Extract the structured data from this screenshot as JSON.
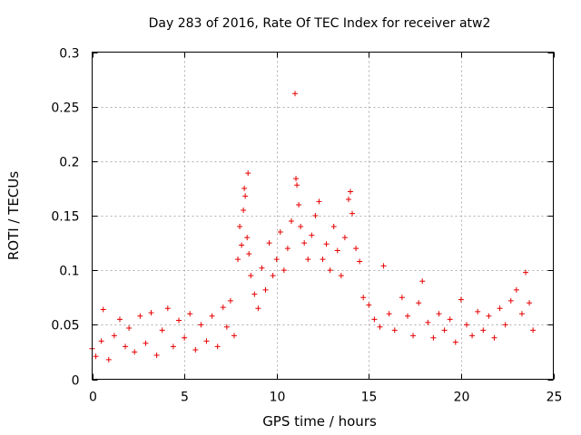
{
  "chart_data": {
    "type": "scatter",
    "title": "Day 283 of 2016, Rate Of TEC Index for receiver atw2",
    "xlabel": "GPS time / hours",
    "ylabel": "ROTI / TECUs",
    "xlim": [
      0,
      25
    ],
    "ylim": [
      0,
      0.3
    ],
    "xticks": [
      0,
      5,
      10,
      15,
      20,
      25
    ],
    "xtick_labels": [
      "0",
      "5",
      "10",
      "15",
      "20",
      "25"
    ],
    "yticks": [
      0,
      0.05,
      0.1,
      0.15,
      0.2,
      0.25,
      0.3
    ],
    "ytick_labels": [
      "0",
      "0.05",
      "0.1",
      "0.15",
      "0.2",
      "0.25",
      "0.3"
    ],
    "grid": true,
    "marker": "plus",
    "color": "#e60000",
    "series": [
      {
        "name": "ROTI",
        "points": [
          [
            0.0,
            0.028
          ],
          [
            0.2,
            0.021
          ],
          [
            0.5,
            0.035
          ],
          [
            0.6,
            0.064
          ],
          [
            0.9,
            0.018
          ],
          [
            1.2,
            0.04
          ],
          [
            1.5,
            0.055
          ],
          [
            1.8,
            0.03
          ],
          [
            2.0,
            0.047
          ],
          [
            2.3,
            0.025
          ],
          [
            2.6,
            0.058
          ],
          [
            2.9,
            0.033
          ],
          [
            3.2,
            0.061
          ],
          [
            3.5,
            0.022
          ],
          [
            3.8,
            0.045
          ],
          [
            4.1,
            0.065
          ],
          [
            4.4,
            0.03
          ],
          [
            4.7,
            0.054
          ],
          [
            5.0,
            0.038
          ],
          [
            5.3,
            0.06
          ],
          [
            5.6,
            0.027
          ],
          [
            5.9,
            0.05
          ],
          [
            6.2,
            0.035
          ],
          [
            6.5,
            0.058
          ],
          [
            6.8,
            0.03
          ],
          [
            7.1,
            0.066
          ],
          [
            7.3,
            0.048
          ],
          [
            7.5,
            0.072
          ],
          [
            7.7,
            0.04
          ],
          [
            7.9,
            0.11
          ],
          [
            8.0,
            0.14
          ],
          [
            8.1,
            0.123
          ],
          [
            8.2,
            0.155
          ],
          [
            8.25,
            0.175
          ],
          [
            8.3,
            0.168
          ],
          [
            8.4,
            0.13
          ],
          [
            8.45,
            0.189
          ],
          [
            8.5,
            0.115
          ],
          [
            8.6,
            0.095
          ],
          [
            8.8,
            0.078
          ],
          [
            9.0,
            0.065
          ],
          [
            9.2,
            0.102
          ],
          [
            9.4,
            0.082
          ],
          [
            9.6,
            0.125
          ],
          [
            9.8,
            0.095
          ],
          [
            10.0,
            0.11
          ],
          [
            10.2,
            0.135
          ],
          [
            10.4,
            0.1
          ],
          [
            10.6,
            0.12
          ],
          [
            10.8,
            0.145
          ],
          [
            11.0,
            0.262
          ],
          [
            11.05,
            0.184
          ],
          [
            11.1,
            0.178
          ],
          [
            11.2,
            0.16
          ],
          [
            11.3,
            0.14
          ],
          [
            11.5,
            0.125
          ],
          [
            11.7,
            0.11
          ],
          [
            11.9,
            0.132
          ],
          [
            12.1,
            0.15
          ],
          [
            12.3,
            0.163
          ],
          [
            12.5,
            0.11
          ],
          [
            12.7,
            0.124
          ],
          [
            12.9,
            0.1
          ],
          [
            13.1,
            0.14
          ],
          [
            13.3,
            0.118
          ],
          [
            13.5,
            0.095
          ],
          [
            13.7,
            0.13
          ],
          [
            13.9,
            0.165
          ],
          [
            14.0,
            0.172
          ],
          [
            14.1,
            0.152
          ],
          [
            14.3,
            0.12
          ],
          [
            14.5,
            0.108
          ],
          [
            14.7,
            0.075
          ],
          [
            15.0,
            0.068
          ],
          [
            15.3,
            0.055
          ],
          [
            15.6,
            0.048
          ],
          [
            15.8,
            0.104
          ],
          [
            16.1,
            0.06
          ],
          [
            16.4,
            0.045
          ],
          [
            16.8,
            0.075
          ],
          [
            17.1,
            0.058
          ],
          [
            17.4,
            0.04
          ],
          [
            17.7,
            0.07
          ],
          [
            17.9,
            0.09
          ],
          [
            18.2,
            0.052
          ],
          [
            18.5,
            0.038
          ],
          [
            18.8,
            0.06
          ],
          [
            19.1,
            0.045
          ],
          [
            19.4,
            0.055
          ],
          [
            19.7,
            0.034
          ],
          [
            20.0,
            0.073
          ],
          [
            20.3,
            0.05
          ],
          [
            20.6,
            0.04
          ],
          [
            20.9,
            0.062
          ],
          [
            21.2,
            0.045
          ],
          [
            21.5,
            0.058
          ],
          [
            21.8,
            0.038
          ],
          [
            22.1,
            0.065
          ],
          [
            22.4,
            0.05
          ],
          [
            22.7,
            0.072
          ],
          [
            23.0,
            0.082
          ],
          [
            23.3,
            0.06
          ],
          [
            23.5,
            0.098
          ],
          [
            23.7,
            0.07
          ],
          [
            23.9,
            0.045
          ]
        ]
      }
    ],
    "note": "Dense band of ROTI values between ~0.01 and ~0.05 TECU throughout the day (0-24 h), with enhanced scatter up to ~0.19 between 8-15 h and an outlier of ~0.26 near 11 h."
  }
}
